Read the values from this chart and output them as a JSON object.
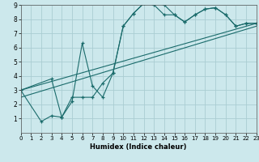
{
  "xlabel": "Humidex (Indice chaleur)",
  "bg_color": "#cce8ec",
  "grid_color": "#aacdd2",
  "line_color": "#1a6b6b",
  "xlim": [
    0,
    23
  ],
  "ylim": [
    0,
    9
  ],
  "xticks": [
    0,
    1,
    2,
    3,
    4,
    5,
    6,
    7,
    8,
    9,
    10,
    11,
    12,
    13,
    14,
    15,
    16,
    17,
    18,
    19,
    20,
    21,
    22,
    23
  ],
  "yticks": [
    1,
    2,
    3,
    4,
    5,
    6,
    7,
    8,
    9
  ],
  "series1_x": [
    0,
    2,
    3,
    4,
    5,
    6,
    7,
    8,
    9,
    10,
    11,
    12,
    13,
    14,
    15,
    16,
    17,
    18,
    19,
    20,
    21,
    22,
    23
  ],
  "series1_y": [
    3.0,
    0.8,
    1.2,
    1.1,
    2.2,
    6.3,
    3.3,
    2.5,
    4.2,
    7.5,
    8.4,
    9.1,
    9.1,
    9.0,
    8.3,
    7.8,
    8.3,
    8.7,
    8.8,
    8.3,
    7.5,
    7.7,
    7.7
  ],
  "series2_x": [
    0,
    3,
    4,
    5,
    6,
    7,
    8,
    9,
    10,
    11,
    12,
    13,
    14,
    15,
    16,
    17,
    18,
    19,
    20,
    21,
    22,
    23
  ],
  "series2_y": [
    3.0,
    3.8,
    1.1,
    2.5,
    2.5,
    2.5,
    3.5,
    4.2,
    7.5,
    8.4,
    9.1,
    9.0,
    8.3,
    8.3,
    7.8,
    8.3,
    8.7,
    8.8,
    8.3,
    7.5,
    7.7,
    7.7
  ],
  "series3_x": [
    0,
    23
  ],
  "series3_y": [
    3.0,
    7.7
  ],
  "series4_x": [
    0,
    23
  ],
  "series4_y": [
    2.5,
    7.5
  ]
}
